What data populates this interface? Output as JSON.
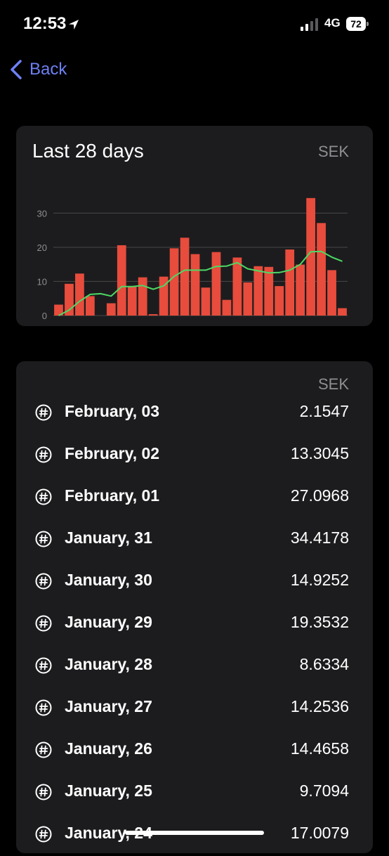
{
  "status_bar": {
    "time": "12:53",
    "network": "4G",
    "battery": "72",
    "location_icon": "location-arrow-icon",
    "signal_icon": "cellular-signal-icon"
  },
  "nav": {
    "back_label": "Back",
    "back_icon": "chevron-left-icon",
    "accent": "#6e80f5"
  },
  "chart_card": {
    "title": "Last 28 days",
    "currency": "SEK"
  },
  "chart_data": {
    "type": "bar",
    "ylim": [
      0,
      35
    ],
    "yticks": [
      0,
      10,
      20,
      30
    ],
    "grid": true,
    "bar_color": "#e74c3c",
    "line_color": "#4cd964",
    "series": [
      {
        "type": "bar",
        "values": [
          3.2,
          9.3,
          12.3,
          5.7,
          0,
          3.6,
          20.6,
          8.5,
          11.2,
          0.4,
          11.4,
          19.7,
          22.8,
          18.0,
          8.2,
          18.6,
          4.6,
          17.0,
          9.7094,
          14.4658,
          14.2536,
          8.6334,
          19.3532,
          14.9252,
          34.4178,
          27.0968,
          13.3045,
          2.1547
        ]
      },
      {
        "type": "line",
        "values": [
          0,
          1.6,
          4.2,
          6.2,
          6.4,
          5.7,
          8.5,
          8.5,
          8.8,
          7.7,
          8.7,
          11.5,
          13.3,
          13.3,
          13.3,
          14.4,
          14.5,
          15.5,
          13.7,
          13.1,
          12.5,
          12.6,
          13.3,
          15.0,
          18.7,
          18.8,
          17.1,
          15.9
        ]
      }
    ]
  },
  "list": {
    "currency": "SEK",
    "row_icon": "hash-circle-icon",
    "rows": [
      {
        "label": "February, 03",
        "value": "2.1547"
      },
      {
        "label": "February, 02",
        "value": "13.3045"
      },
      {
        "label": "February, 01",
        "value": "27.0968"
      },
      {
        "label": "January, 31",
        "value": "34.4178"
      },
      {
        "label": "January, 30",
        "value": "14.9252"
      },
      {
        "label": "January, 29",
        "value": "19.3532"
      },
      {
        "label": "January, 28",
        "value": "8.6334"
      },
      {
        "label": "January, 27",
        "value": "14.2536"
      },
      {
        "label": "January, 26",
        "value": "14.4658"
      },
      {
        "label": "January, 25",
        "value": "9.7094"
      },
      {
        "label": "January, 24",
        "value": "17.0079"
      }
    ]
  }
}
